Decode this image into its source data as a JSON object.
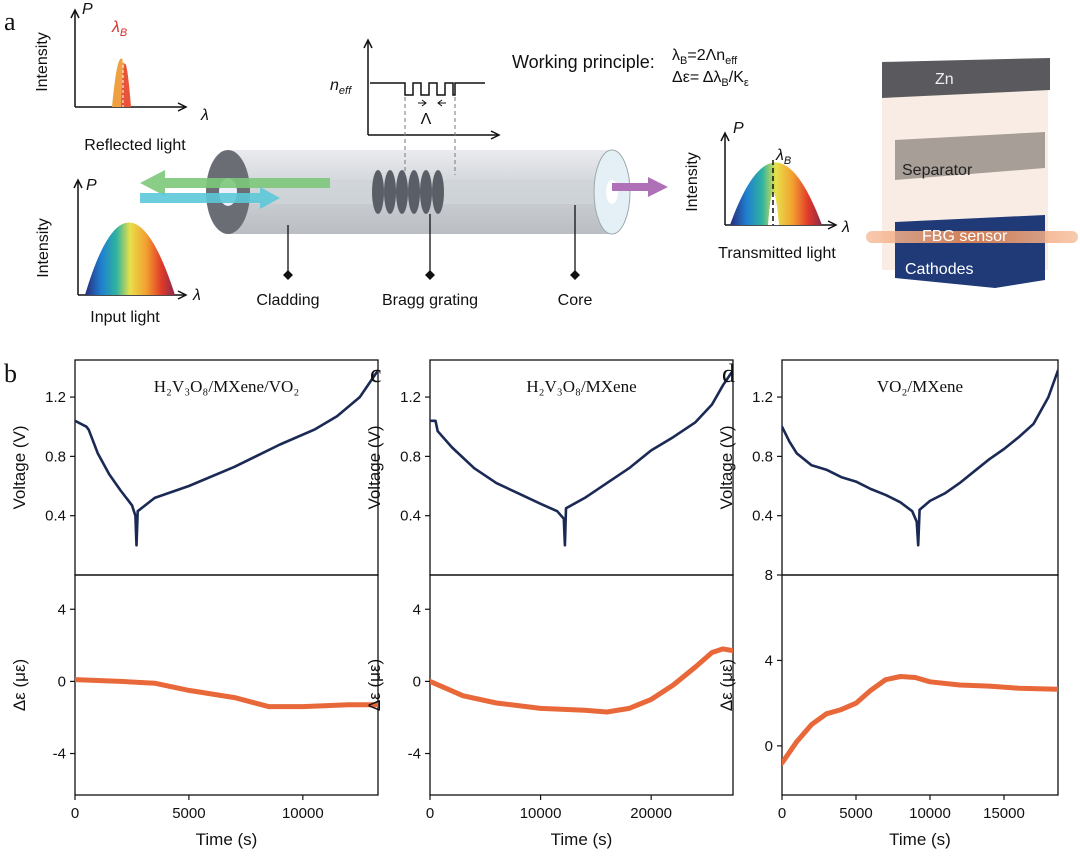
{
  "diagram": {
    "panel": "a",
    "reflected": {
      "y_symbol": "P",
      "y_label": "Intensity",
      "peak": {
        "base": "λ",
        "sub": "B"
      },
      "x_symbol": "λ",
      "caption": "Reflected light"
    },
    "index_profile": {
      "y_label": {
        "base": "n",
        "sub": "eff"
      },
      "period": "Λ"
    },
    "principle": {
      "title": "Working principle:",
      "equations": [
        [
          "λ",
          "B",
          "=2Λn",
          "eff"
        ],
        [
          "Δε= Δλ",
          "B",
          "/K",
          "ε"
        ]
      ]
    },
    "input": {
      "y_symbol": "P",
      "y_label": "Intensity",
      "x_symbol": "λ",
      "caption": "Input light"
    },
    "fiber_labels": [
      "Cladding",
      "Bragg grating",
      "Core"
    ],
    "transmitted": {
      "y_symbol": "P",
      "y_label": "Intensity",
      "peak": {
        "base": "λ",
        "sub": "B"
      },
      "x_symbol": "λ",
      "caption": "Transmitted light"
    },
    "battery": [
      "Zn",
      "Separator",
      "FBG sensor",
      "Cathodes"
    ]
  },
  "chart_data": [
    {
      "type": "line",
      "label": "b",
      "annotation": "H₂V₃O₈/MXene/VO₂",
      "y_label": "Voltage (V)",
      "xlim": [
        0,
        13300
      ],
      "ylim": [
        0,
        1.45
      ],
      "yticks": [
        0.4,
        0.8,
        1.2
      ],
      "x": [
        0,
        500,
        600,
        1000,
        1500,
        2000,
        2500,
        2650,
        2700,
        2750,
        3500,
        5000,
        7000,
        9000,
        10500,
        11500,
        12500,
        13300
      ],
      "series": [
        {
          "color": "#1b2a55",
          "values": [
            1.04,
            1.0,
            0.98,
            0.82,
            0.68,
            0.57,
            0.47,
            0.4,
            0.2,
            0.43,
            0.52,
            0.6,
            0.73,
            0.88,
            0.98,
            1.07,
            1.2,
            1.38
          ]
        }
      ]
    },
    {
      "type": "line",
      "y_label": "Δε (με)",
      "x_label": "Time (s)",
      "xlim": [
        0,
        13300
      ],
      "xticks": [
        0,
        5000,
        10000
      ],
      "ylim": [
        -6.3,
        5.9
      ],
      "yticks": [
        -4,
        0,
        4
      ],
      "x": [
        0,
        2000,
        3500,
        5000,
        7000,
        8500,
        10000,
        12000,
        13300
      ],
      "series": [
        {
          "color": "#e8683a",
          "values": [
            0.1,
            0,
            -0.1,
            -0.5,
            -0.9,
            -1.4,
            -1.4,
            -1.3,
            -1.3
          ]
        }
      ]
    },
    {
      "type": "line",
      "label": "c",
      "annotation": "H₂V₃O₈/MXene",
      "y_label": "Voltage (V)",
      "xlim": [
        0,
        27400
      ],
      "ylim": [
        0,
        1.45
      ],
      "yticks": [
        0.4,
        0.8,
        1.2
      ],
      "x": [
        0,
        500,
        700,
        2000,
        4000,
        6000,
        8000,
        10000,
        11500,
        12100,
        12200,
        12300,
        14000,
        16000,
        18000,
        20000,
        22000,
        24000,
        25500,
        26500,
        27400
      ],
      "series": [
        {
          "color": "#1b2a55",
          "values": [
            1.04,
            1.04,
            0.97,
            0.86,
            0.72,
            0.62,
            0.55,
            0.48,
            0.43,
            0.38,
            0.2,
            0.45,
            0.52,
            0.62,
            0.72,
            0.84,
            0.93,
            1.03,
            1.15,
            1.28,
            1.38
          ]
        }
      ]
    },
    {
      "type": "line",
      "y_label": "Δε (με)",
      "x_label": "Time (s)",
      "xlim": [
        0,
        27400
      ],
      "xticks": [
        0,
        10000,
        20000
      ],
      "ylim": [
        -6.3,
        5.9
      ],
      "yticks": [
        -4,
        0,
        4
      ],
      "x": [
        0,
        3000,
        6000,
        10000,
        14000,
        16000,
        18000,
        20000,
        22000,
        24000,
        25500,
        26500,
        27400
      ],
      "series": [
        {
          "color": "#e8683a",
          "values": [
            0,
            -0.8,
            -1.2,
            -1.5,
            -1.6,
            -1.7,
            -1.5,
            -1.0,
            -0.2,
            0.8,
            1.6,
            1.8,
            1.7
          ]
        }
      ]
    },
    {
      "type": "line",
      "label": "d",
      "annotation": "VO₂/MXene",
      "y_label": "Voltage (V)",
      "xlim": [
        0,
        18650
      ],
      "ylim": [
        0,
        1.45
      ],
      "yticks": [
        0.4,
        0.8,
        1.2
      ],
      "x": [
        0,
        500,
        1000,
        2000,
        3000,
        4000,
        5000,
        6000,
        7000,
        8000,
        8800,
        9100,
        9200,
        9300,
        10000,
        11000,
        12000,
        13000,
        14000,
        15000,
        16000,
        17000,
        18000,
        18650
      ],
      "series": [
        {
          "color": "#1b2a55",
          "values": [
            1.0,
            0.9,
            0.82,
            0.74,
            0.71,
            0.66,
            0.63,
            0.58,
            0.54,
            0.49,
            0.43,
            0.36,
            0.2,
            0.44,
            0.5,
            0.55,
            0.62,
            0.7,
            0.78,
            0.85,
            0.93,
            1.02,
            1.2,
            1.38
          ]
        }
      ]
    },
    {
      "type": "line",
      "y_label": "Δε (με)",
      "x_label": "Time (s)",
      "xlim": [
        0,
        18650
      ],
      "xticks": [
        0,
        5000,
        10000,
        15000
      ],
      "ylim": [
        -2.3,
        8
      ],
      "yticks": [
        0,
        4,
        8
      ],
      "x": [
        0,
        1000,
        2000,
        3000,
        4000,
        5000,
        6000,
        7000,
        8000,
        9000,
        10000,
        12000,
        14000,
        16000,
        18650
      ],
      "series": [
        {
          "color": "#e8683a",
          "values": [
            -0.8,
            0.2,
            1.0,
            1.5,
            1.7,
            2.0,
            2.6,
            3.1,
            3.25,
            3.2,
            3.0,
            2.85,
            2.8,
            2.7,
            2.65
          ]
        }
      ]
    }
  ]
}
